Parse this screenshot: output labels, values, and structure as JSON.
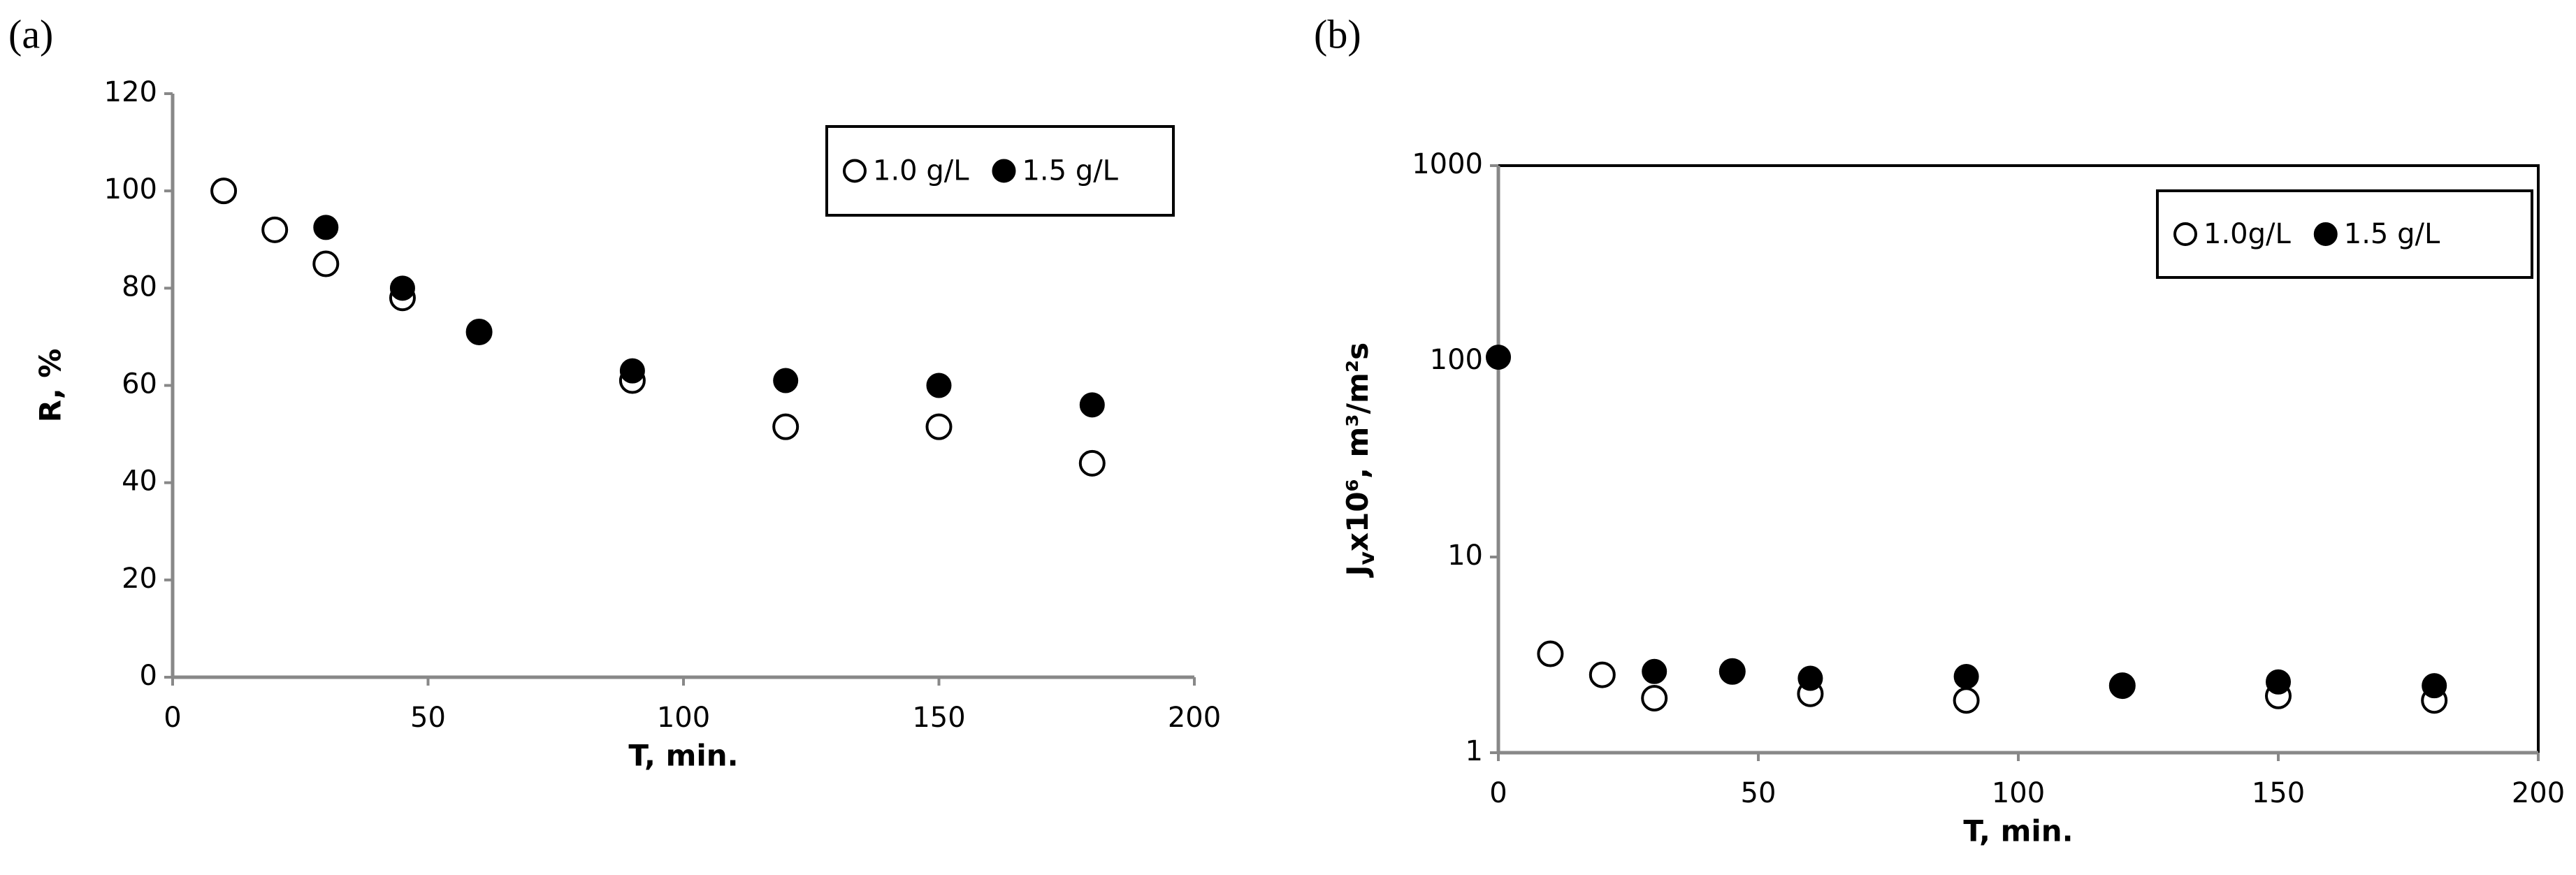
{
  "chart_data": [
    {
      "type": "scatter",
      "panel_label": "(a)",
      "x_label": "T, min.",
      "y_label": "R, %",
      "xlim": [
        0,
        200
      ],
      "xticks": [
        0,
        50,
        100,
        150,
        200
      ],
      "ylim": [
        0,
        120
      ],
      "yticks": [
        0,
        20,
        40,
        60,
        80,
        100,
        120
      ],
      "log_y": false,
      "frame": false,
      "legend": "upper right",
      "series": [
        {
          "name": "1.0 g/L",
          "color": "#000000",
          "marker": "open",
          "x": [
            10,
            20,
            30,
            45,
            60,
            90,
            120,
            150,
            180
          ],
          "values": [
            100,
            92,
            85,
            78,
            71,
            61,
            51.5,
            51.5,
            44
          ]
        },
        {
          "name": "1.5 g/L",
          "color": "#000000",
          "marker": "filled",
          "x": [
            30,
            45,
            60,
            90,
            120,
            150,
            180
          ],
          "values": [
            92.5,
            80,
            71,
            63,
            61,
            60,
            56
          ]
        }
      ]
    },
    {
      "type": "scatter",
      "panel_label": "(b)",
      "x_label": "T, min.",
      "y_label": {
        "main": "J",
        "sub": "v",
        "rest": "x10⁶, m³/m²s"
      },
      "xlim": [
        0,
        200
      ],
      "xticks": [
        0,
        50,
        100,
        150,
        200
      ],
      "ylim": [
        1,
        1000
      ],
      "yticks": [
        1,
        10,
        100,
        1000
      ],
      "log_y": true,
      "frame": true,
      "legend": "upper right",
      "series": [
        {
          "name": "1.0g/L",
          "color": "#000000",
          "marker": "open",
          "x": [
            10,
            20,
            30,
            45,
            60,
            90,
            120,
            150,
            180
          ],
          "values": [
            3.2,
            2.5,
            1.9,
            2.6,
            2.0,
            1.85,
            2.2,
            1.95,
            1.85
          ]
        },
        {
          "name": "1.5 g/L",
          "color": "#000000",
          "marker": "filled",
          "x": [
            0,
            30,
            45,
            60,
            90,
            120,
            150,
            180
          ],
          "values": [
            105,
            2.6,
            2.6,
            2.4,
            2.45,
            2.2,
            2.3,
            2.2
          ]
        }
      ]
    }
  ]
}
